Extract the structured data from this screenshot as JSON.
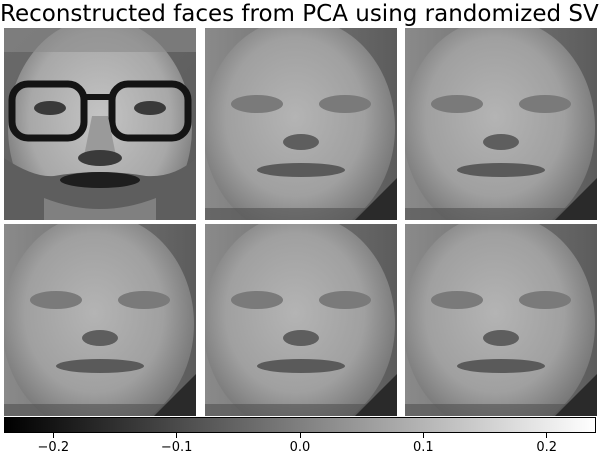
{
  "title": "Reconstructed faces from PCA using randomized SVD",
  "panels": [
    {
      "kind": "original-face"
    },
    {
      "kind": "reconstructed-face"
    },
    {
      "kind": "reconstructed-face"
    },
    {
      "kind": "reconstructed-face"
    },
    {
      "kind": "reconstructed-face"
    },
    {
      "kind": "reconstructed-face"
    }
  ],
  "colorbar": {
    "colormap": "gray",
    "range": [
      -0.24,
      0.24
    ],
    "ticks": [
      {
        "value": -0.2,
        "label": "−0.2"
      },
      {
        "value": -0.1,
        "label": "−0.1"
      },
      {
        "value": 0.0,
        "label": "0.0"
      },
      {
        "value": 0.1,
        "label": "0.1"
      },
      {
        "value": 0.2,
        "label": "0.2"
      }
    ]
  }
}
